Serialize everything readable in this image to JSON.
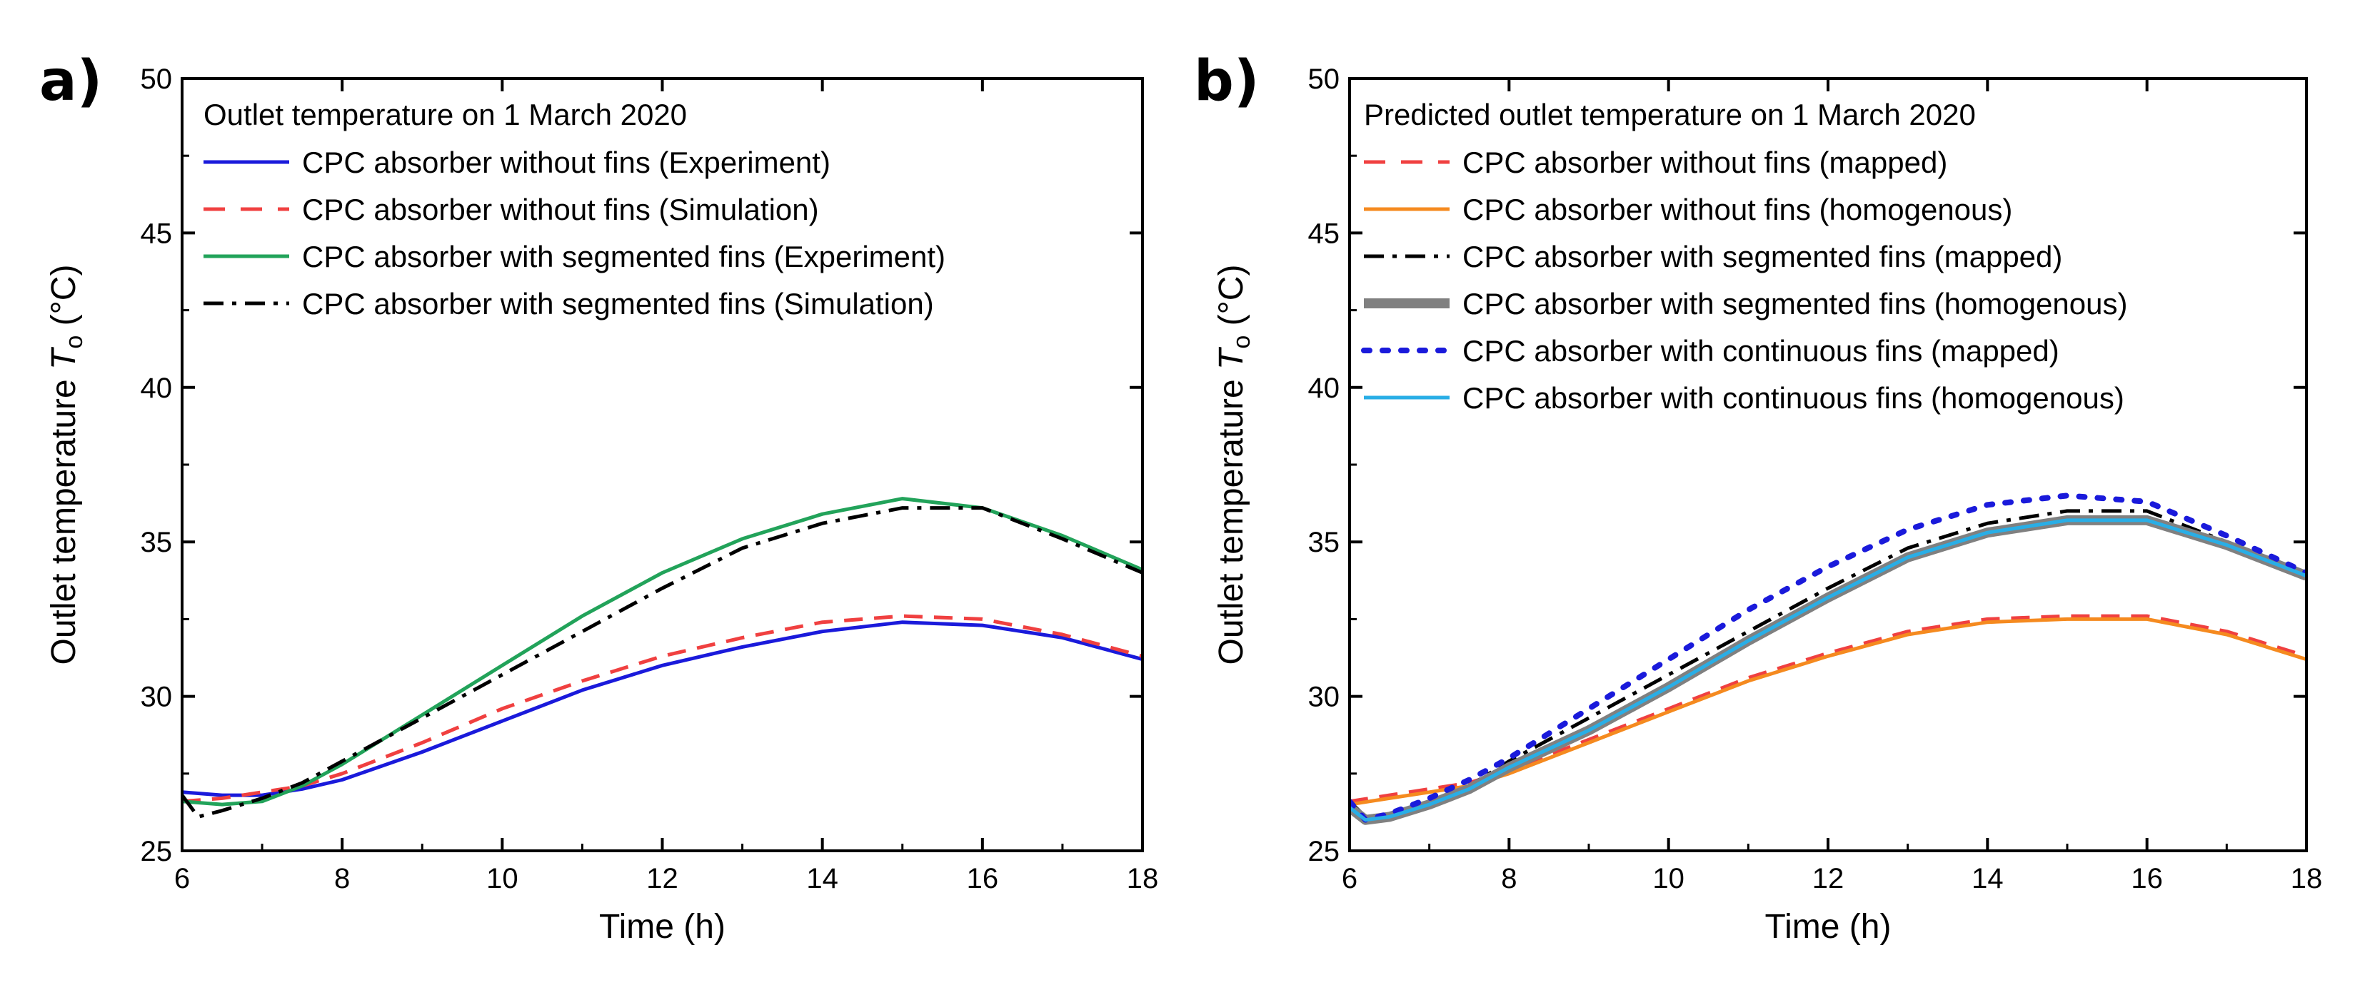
{
  "chart_data": [
    {
      "type": "line",
      "panel_label": "a)",
      "legend_title": "Outlet temperature on 1 March 2020",
      "xlabel": "Time (h)",
      "ylabel": "Outlet temperature",
      "ylabel_symbol": "T",
      "ylabel_subscript": "o",
      "ylabel_unit": " (°C)",
      "xlim": [
        6,
        18
      ],
      "ylim": [
        25,
        50
      ],
      "xticks": [
        6,
        8,
        10,
        12,
        14,
        16,
        18
      ],
      "yticks": [
        25,
        30,
        35,
        40,
        45,
        50
      ],
      "legend_position": "top-left",
      "series": [
        {
          "name": "CPC absorber without fins (Experiment)",
          "color": "#1a1adb",
          "style": "solid",
          "x": [
            6,
            6.5,
            7,
            7.5,
            8,
            9,
            10,
            11,
            12,
            13,
            14,
            15,
            16,
            17,
            18
          ],
          "y": [
            26.9,
            26.8,
            26.8,
            27.0,
            27.3,
            28.2,
            29.2,
            30.2,
            31.0,
            31.6,
            32.1,
            32.4,
            32.3,
            31.9,
            31.2
          ]
        },
        {
          "name": "CPC absorber without fins (Simulation)",
          "color": "#f04040",
          "style": "dashed",
          "x": [
            6,
            6.5,
            7,
            7.5,
            8,
            9,
            10,
            11,
            12,
            13,
            14,
            15,
            16,
            17,
            18
          ],
          "y": [
            26.6,
            26.7,
            26.9,
            27.1,
            27.5,
            28.5,
            29.6,
            30.5,
            31.3,
            31.9,
            32.4,
            32.6,
            32.5,
            32.0,
            31.3
          ]
        },
        {
          "name": "CPC absorber with segmented fins (Experiment)",
          "color": "#22a35a",
          "style": "solid",
          "x": [
            6,
            6.5,
            7,
            7.5,
            8,
            9,
            10,
            11,
            12,
            13,
            14,
            15,
            16,
            17,
            18
          ],
          "y": [
            26.6,
            26.5,
            26.6,
            27.1,
            27.8,
            29.4,
            31.0,
            32.6,
            34.0,
            35.1,
            35.9,
            36.4,
            36.1,
            35.2,
            34.1
          ]
        },
        {
          "name": "CPC absorber with segmented fins (Simulation)",
          "color": "#000000",
          "style": "dashdot",
          "x": [
            6,
            6.2,
            6.5,
            7,
            7.5,
            8,
            9,
            10,
            11,
            12,
            13,
            14,
            15,
            16,
            17,
            18
          ],
          "y": [
            26.8,
            26.1,
            26.3,
            26.7,
            27.2,
            27.9,
            29.3,
            30.7,
            32.1,
            33.5,
            34.8,
            35.6,
            36.1,
            36.1,
            35.1,
            34.0
          ]
        }
      ]
    },
    {
      "type": "line",
      "panel_label": "b)",
      "legend_title": "Predicted outlet temperature on 1 March 2020",
      "xlabel": "Time (h)",
      "ylabel": "Outlet temperature",
      "ylabel_symbol": "T",
      "ylabel_subscript": "o",
      "ylabel_unit": " (°C)",
      "xlim": [
        6,
        18
      ],
      "ylim": [
        25,
        50
      ],
      "xticks": [
        6,
        8,
        10,
        12,
        14,
        16,
        18
      ],
      "yticks": [
        25,
        30,
        35,
        40,
        45,
        50
      ],
      "legend_position": "top-left",
      "series": [
        {
          "name": "CPC absorber without fins (mapped)",
          "color": "#f04040",
          "style": "dashed",
          "x": [
            6,
            6.5,
            7,
            7.5,
            8,
            9,
            10,
            11,
            12,
            13,
            14,
            15,
            16,
            17,
            18
          ],
          "y": [
            26.6,
            26.8,
            27.0,
            27.2,
            27.6,
            28.6,
            29.6,
            30.6,
            31.4,
            32.1,
            32.5,
            32.6,
            32.6,
            32.1,
            31.3
          ]
        },
        {
          "name": "CPC absorber without fins (homogenous)",
          "color": "#f58a1f",
          "style": "solid",
          "x": [
            6,
            6.5,
            7,
            7.5,
            8,
            9,
            10,
            11,
            12,
            13,
            14,
            15,
            16,
            17,
            18
          ],
          "y": [
            26.5,
            26.7,
            26.9,
            27.1,
            27.5,
            28.5,
            29.5,
            30.5,
            31.3,
            32.0,
            32.4,
            32.5,
            32.5,
            32.0,
            31.2
          ]
        },
        {
          "name": "CPC absorber with segmented fins (mapped)",
          "color": "#000000",
          "style": "dashdot",
          "x": [
            6,
            6.2,
            6.5,
            7,
            7.5,
            8,
            9,
            10,
            11,
            12,
            13,
            14,
            15,
            16,
            17,
            18
          ],
          "y": [
            26.6,
            26.1,
            26.2,
            26.6,
            27.1,
            27.9,
            29.3,
            30.7,
            32.1,
            33.5,
            34.8,
            35.6,
            36.0,
            36.0,
            35.0,
            34.0
          ]
        },
        {
          "name": "CPC absorber with segmented fins (homogenous)",
          "color": "#808080",
          "style": "thick",
          "x": [
            6,
            6.2,
            6.5,
            7,
            7.5,
            8,
            9,
            10,
            11,
            12,
            13,
            14,
            15,
            16,
            17,
            18
          ],
          "y": [
            26.4,
            26.0,
            26.1,
            26.5,
            27.0,
            27.7,
            28.9,
            30.3,
            31.8,
            33.2,
            34.5,
            35.3,
            35.7,
            35.7,
            34.9,
            33.9
          ]
        },
        {
          "name": "CPC absorber with continuous fins (mapped)",
          "color": "#1a1adb",
          "style": "dotted",
          "x": [
            6,
            6.2,
            6.5,
            7,
            7.5,
            8,
            9,
            10,
            11,
            12,
            13,
            14,
            15,
            16,
            17,
            18
          ],
          "y": [
            26.6,
            26.0,
            26.2,
            26.7,
            27.3,
            28.0,
            29.6,
            31.2,
            32.8,
            34.2,
            35.4,
            36.2,
            36.5,
            36.3,
            35.2,
            34.0
          ]
        },
        {
          "name": "CPC absorber with continuous fins (homogenous)",
          "color": "#29aee6",
          "style": "solid",
          "x": [
            6,
            6.2,
            6.5,
            7,
            7.5,
            8,
            9,
            10,
            11,
            12,
            13,
            14,
            15,
            16,
            17,
            18
          ],
          "y": [
            26.4,
            26.0,
            26.1,
            26.5,
            27.0,
            27.7,
            28.9,
            30.3,
            31.8,
            33.2,
            34.5,
            35.3,
            35.7,
            35.7,
            34.9,
            33.9
          ]
        }
      ]
    }
  ]
}
